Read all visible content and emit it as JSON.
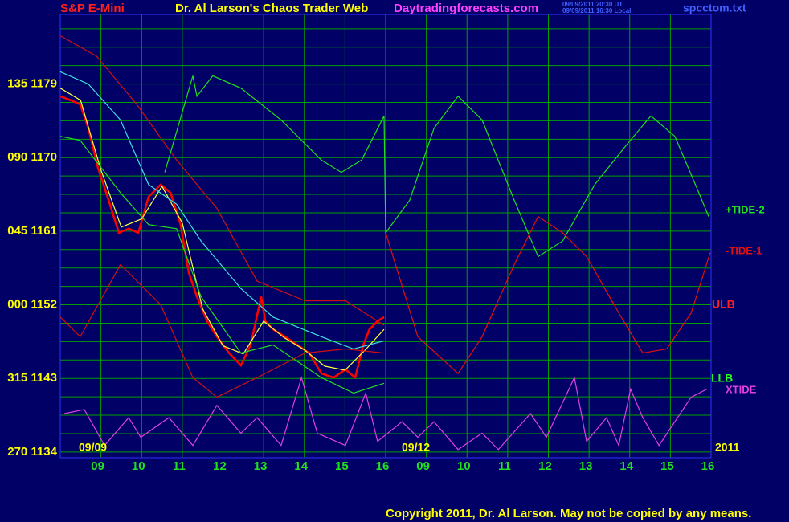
{
  "chart_data": {
    "type": "line",
    "title": "S&P E-Mini",
    "subtitle": "Dr. Al Larson's Chaos Trader Web",
    "site": "Daytradingforecasts.com",
    "timestamps": [
      "09/09/2011 20:30 UT",
      "09/09/2011 16:30 Local"
    ],
    "file": "spcctom.txt",
    "copyright": "Copyright 2011, Dr. Al Larson. May not be copied by any means.",
    "annotations": [
      "09/09",
      "09/12",
      "2011",
      "ULB",
      "LLB"
    ],
    "annotation_colors": [
      "#ffff00",
      "#ffff00",
      "#ffff00",
      "#ff2020",
      "#20ff20"
    ],
    "xlim": [
      0,
      16
    ],
    "xticks": [
      {
        "value": 1,
        "label": "09"
      },
      {
        "value": 2,
        "label": "10"
      },
      {
        "value": 3,
        "label": "11"
      },
      {
        "value": 4,
        "label": "12"
      },
      {
        "value": 5,
        "label": "13"
      },
      {
        "value": 6,
        "label": "14"
      },
      {
        "value": 7,
        "label": "15"
      },
      {
        "value": 8,
        "label": "16"
      },
      {
        "value": 9,
        "label": "09"
      },
      {
        "value": 10,
        "label": "10"
      },
      {
        "value": 11,
        "label": "11"
      },
      {
        "value": 12,
        "label": "12"
      },
      {
        "value": 13,
        "label": "13"
      },
      {
        "value": 14,
        "label": "14"
      },
      {
        "value": 15,
        "label": "15"
      },
      {
        "value": 16,
        "label": "16"
      }
    ],
    "ylim": [
      1133.3,
      1187.5
    ],
    "yticks": [
      {
        "value": 1179,
        "label": "135 1179"
      },
      {
        "value": 1170,
        "label": "090 1170"
      },
      {
        "value": 1161,
        "label": "045 1161"
      },
      {
        "value": 1152,
        "label": "000 1152"
      },
      {
        "value": 1143,
        "label": "315 1143"
      },
      {
        "value": 1134,
        "label": "270 1134"
      }
    ],
    "yticks_minor": [
      1136.25,
      1138.5,
      1140.75,
      1145.25,
      1147.5,
      1149.75,
      1154.25,
      1156.5,
      1158.75,
      1163.25,
      1165.5,
      1167.75,
      1172.25,
      1174.5,
      1176.75,
      1181.25,
      1183.5,
      1185.75
    ],
    "grid": true,
    "series": [
      {
        "color": "#ff0000",
        "x": [
          0,
          0.26,
          0.49,
          0.69,
          0.93,
          1.19,
          1.44,
          1.68,
          1.92,
          2.17,
          2.47,
          2.71,
          2.96,
          3.16,
          3.36,
          3.61,
          3.85,
          4.15,
          4.44,
          4.68,
          4.94,
          5.04,
          5.23,
          5.53,
          5.83,
          6.12,
          6.42,
          6.72,
          7.01,
          7.25,
          7.45,
          7.6,
          7.8,
          7.96
        ],
        "values": [
          1177.5,
          1177.0,
          1176.5,
          1173.6,
          1168.7,
          1164.8,
          1160.8,
          1161.3,
          1160.8,
          1165.2,
          1166.7,
          1165.7,
          1161.8,
          1155.9,
          1153.0,
          1150.0,
          1148.1,
          1146.1,
          1144.6,
          1147.1,
          1153.0,
          1150.0,
          1149.0,
          1148.1,
          1147.1,
          1146.1,
          1143.6,
          1143.1,
          1144.1,
          1143.1,
          1147.1,
          1149.0,
          1150.0,
          1150.5
        ]
      },
      {
        "color": "#ffff40",
        "x": [
          0,
          0.5,
          1,
          1.5,
          2,
          2.5,
          3,
          3.5,
          4,
          4.5,
          5,
          5.5,
          6,
          6.5,
          7,
          7.5,
          7.96
        ],
        "values": [
          1178.5,
          1177.0,
          1168.5,
          1161.5,
          1162.5,
          1166.5,
          1162.0,
          1151.5,
          1147.0,
          1146.0,
          1150.0,
          1148.0,
          1146.5,
          1144.5,
          1144.0,
          1146.5,
          1149.0
        ]
      },
      {
        "color": "#40e0e0",
        "x": [
          0,
          0.69,
          1.48,
          2.17,
          2.86,
          3.46,
          4.44,
          5.23,
          6.42,
          7.21,
          7.96
        ],
        "values": [
          1180.5,
          1179.0,
          1174.6,
          1166.7,
          1164.3,
          1159.8,
          1154.0,
          1150.5,
          1148.1,
          1146.6,
          1147.6
        ]
      },
      {
        "color": "#20e020",
        "x": [
          0,
          0.49,
          1.48,
          2.17,
          2.86,
          3.46,
          4.44,
          5.23,
          6.42,
          7.21,
          7.96
        ],
        "values": [
          1172.6,
          1172.1,
          1165.7,
          1161.8,
          1161.3,
          1153.0,
          1146.1,
          1147.1,
          1143.1,
          1141.2,
          1142.4
        ]
      },
      {
        "color": "#d01010",
        "x": [
          0,
          0.89,
          1.88,
          2.86,
          3.85,
          4.84,
          6.02,
          7.01,
          7.96
        ],
        "values": [
          1184.9,
          1182.4,
          1176.5,
          1169.7,
          1163.8,
          1154.9,
          1152.5,
          1152.5,
          1149.5
        ]
      },
      {
        "color": "#d01010",
        "x": [
          0,
          0.49,
          1.48,
          2.47,
          3.26,
          3.85,
          4.84,
          6.02,
          7.01,
          7.96
        ],
        "values": [
          1150.5,
          1148.1,
          1156.9,
          1152.0,
          1143.1,
          1140.7,
          1143.1,
          1146.1,
          1146.6,
          1146.1
        ]
      },
      {
        "name": "+TIDE-2",
        "color": "#20e020",
        "x": [
          2.57,
          3.26,
          3.36,
          3.75,
          4.44,
          5.43,
          6.42,
          6.91,
          7.41,
          7.96,
          8.0,
          8.59,
          9.19,
          9.78,
          10.37,
          11.16,
          11.75,
          12.35,
          13.14,
          13.93,
          14.52,
          15.11,
          15.7,
          15.94
        ],
        "values": [
          1168.2,
          1180.0,
          1177.5,
          1180.0,
          1178.5,
          1174.6,
          1169.7,
          1168.2,
          1169.7,
          1175.1,
          1160.8,
          1164.8,
          1173.6,
          1177.5,
          1174.6,
          1164.8,
          1157.9,
          1159.8,
          1166.7,
          1171.6,
          1175.1,
          1172.6,
          1165.7,
          1162.8
        ]
      },
      {
        "name": "-TIDE-1",
        "color": "#e01010",
        "x": [
          8.0,
          8.79,
          9.78,
          10.37,
          11.16,
          11.75,
          12.35,
          12.94,
          13.73,
          14.32,
          14.91,
          15.51,
          15.98
        ],
        "values": [
          1160.8,
          1148.1,
          1143.6,
          1148.1,
          1156.9,
          1162.8,
          1160.8,
          1157.9,
          1151.0,
          1146.1,
          1146.6,
          1151.0,
          1158.4
        ]
      },
      {
        "name": "XTIDE",
        "color": "#e040e0",
        "x": [
          0.1,
          0.59,
          1.09,
          1.68,
          1.98,
          2.67,
          3.26,
          3.85,
          4.44,
          4.84,
          5.43,
          5.93,
          6.32,
          7.01,
          7.51,
          7.8,
          8.4,
          8.79,
          9.19,
          9.78,
          10.37,
          10.77,
          11.56,
          11.95,
          12.64,
          12.94,
          13.43,
          13.73,
          14.02,
          14.32,
          14.72,
          15.51,
          15.9
        ],
        "values": [
          1138.7,
          1139.2,
          1134.8,
          1138.2,
          1135.8,
          1138.2,
          1134.8,
          1139.7,
          1136.3,
          1138.2,
          1134.8,
          1143.1,
          1136.3,
          1134.8,
          1141.2,
          1135.3,
          1137.7,
          1135.8,
          1137.7,
          1134.3,
          1136.3,
          1134.3,
          1138.7,
          1135.8,
          1143.1,
          1135.3,
          1138.2,
          1134.8,
          1141.7,
          1138.2,
          1134.8,
          1140.7,
          1141.7
        ]
      }
    ]
  }
}
